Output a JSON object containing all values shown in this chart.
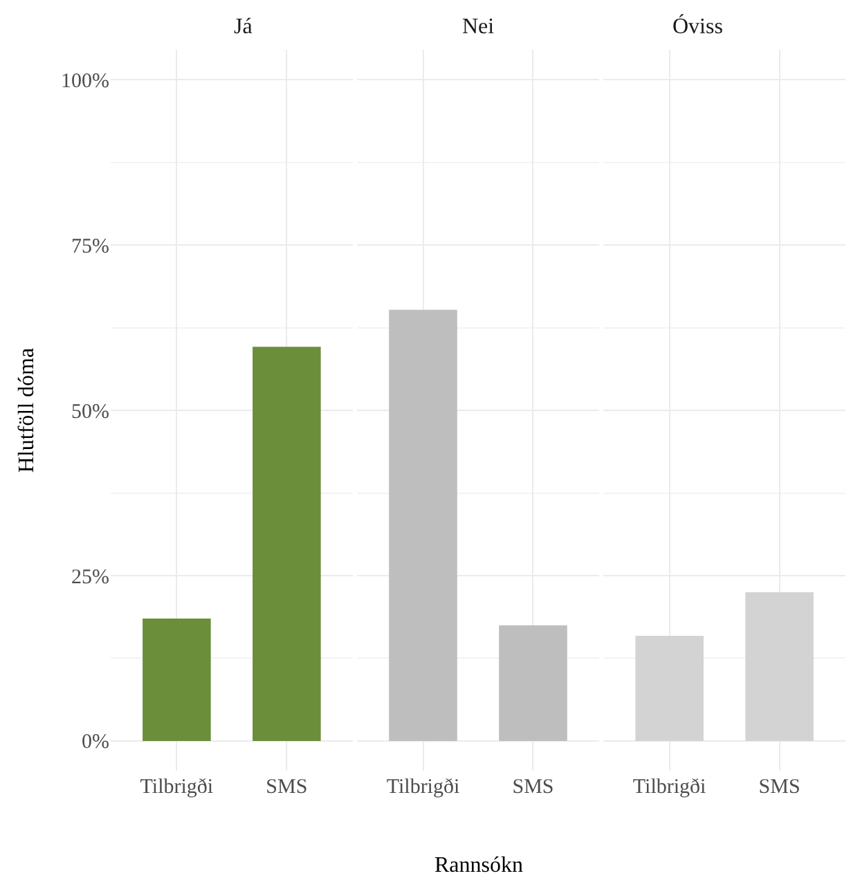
{
  "chart_data": [
    {
      "type": "bar",
      "title": "Já",
      "ylabel": "Hlutföll dóma",
      "categories": [
        "Tilbrigði",
        "SMS"
      ],
      "values": [
        18.5,
        59.6
      ],
      "color": "#6b8e3a",
      "ylim": [
        -4.5,
        104.5
      ],
      "yticks": [
        {
          "value": 0,
          "label": "0%"
        },
        {
          "value": 25,
          "label": "25%"
        },
        {
          "value": 50,
          "label": "50%"
        },
        {
          "value": 75,
          "label": "75%"
        },
        {
          "value": 100,
          "label": "100%"
        }
      ],
      "grid": true
    },
    {
      "type": "bar",
      "title": "Nei",
      "xlabel": "Rannsókn",
      "categories": [
        "Tilbrigði",
        "SMS"
      ],
      "values": [
        65.2,
        17.5
      ],
      "color": "#bebebe",
      "ylim": [
        -4.5,
        104.5
      ],
      "yticks": [
        {
          "value": 0,
          "label": null
        },
        {
          "value": 25,
          "label": null
        },
        {
          "value": 50,
          "label": null
        },
        {
          "value": 75,
          "label": null
        },
        {
          "value": 100,
          "label": null
        }
      ],
      "grid": true,
      "tick_labels": "x"
    },
    {
      "type": "bar",
      "title": "Óviss",
      "categories": [
        "Tilbrigði",
        "SMS"
      ],
      "values": [
        15.9,
        22.5
      ],
      "color": "#d3d3d3",
      "ylim": [
        -4.5,
        104.5
      ],
      "yticks": [
        {
          "value": 0,
          "label": null
        },
        {
          "value": 25,
          "label": null
        },
        {
          "value": 50,
          "label": null
        },
        {
          "value": 75,
          "label": null
        },
        {
          "value": 100,
          "label": null
        }
      ],
      "grid": true,
      "tick_labels": "x"
    }
  ]
}
